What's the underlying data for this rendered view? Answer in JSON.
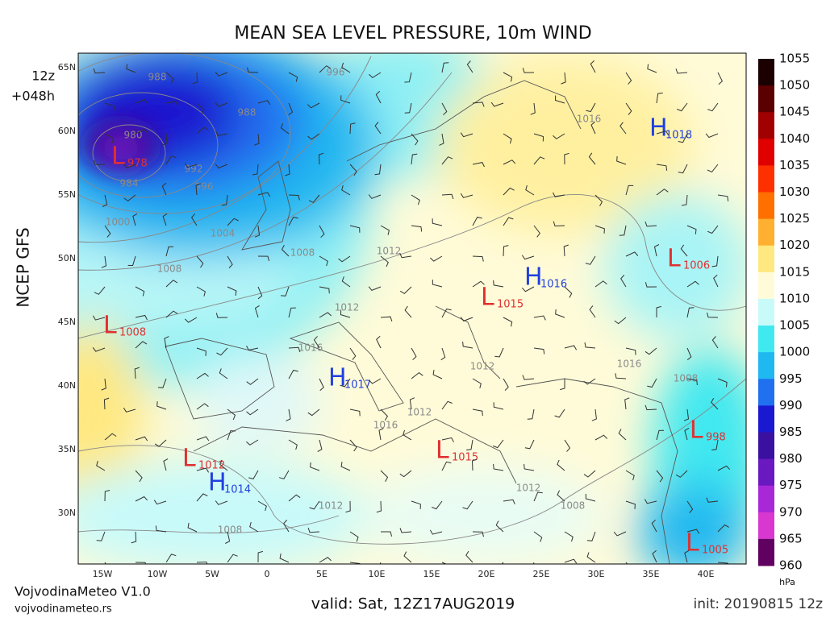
{
  "title": "MEAN SEA LEVEL PRESSURE, 10m WIND",
  "run": {
    "hour": "12z",
    "lead": "+048h"
  },
  "model": "NCEP GFS",
  "lat_labels": [
    "65N",
    "60N",
    "55N",
    "50N",
    "45N",
    "40N",
    "35N",
    "30N"
  ],
  "lon_labels": [
    "15W",
    "10W",
    "5W",
    "0",
    "5E",
    "10E",
    "15E",
    "20E",
    "25E",
    "30E",
    "35E",
    "40E"
  ],
  "colorbar": {
    "labels": [
      1055,
      1050,
      1045,
      1040,
      1035,
      1030,
      1025,
      1020,
      1015,
      1010,
      1005,
      1000,
      995,
      990,
      985,
      980,
      975,
      970,
      965,
      960
    ],
    "colors": [
      "#1a0000",
      "#5a0000",
      "#a00000",
      "#e00000",
      "#ff3000",
      "#ff7000",
      "#ffb030",
      "#ffe880",
      "#fffbd8",
      "#c8fafa",
      "#40e8f0",
      "#20b8f0",
      "#2070f0",
      "#1a18d0",
      "#3a10a0",
      "#6a18c0",
      "#a828d8",
      "#d838d0",
      "#600060"
    ],
    "unit": "hPa"
  },
  "centers": [
    {
      "type": "L",
      "value": "978"
    },
    {
      "type": "H",
      "value": "1018"
    },
    {
      "type": "L",
      "value": "1006"
    },
    {
      "type": "H",
      "value": "1016"
    },
    {
      "type": "L",
      "value": "1015"
    },
    {
      "type": "L",
      "value": "1008"
    },
    {
      "type": "H",
      "value": "1017"
    },
    {
      "type": "L",
      "value": "1015"
    },
    {
      "type": "L",
      "value": "998"
    },
    {
      "type": "L",
      "value": "1012"
    },
    {
      "type": "H",
      "value": "1014"
    },
    {
      "type": "L",
      "value": "1005"
    }
  ],
  "isobar_labels": [
    "988",
    "996",
    "988",
    "980",
    "984",
    "992",
    "996",
    "1000",
    "1004",
    "1008",
    "1008",
    "1012",
    "1012",
    "1016",
    "1016",
    "1012",
    "1016",
    "1012",
    "1012",
    "1008",
    "1012",
    "1008",
    "1008",
    "1016"
  ],
  "footer": {
    "brand": "VojvodinaMeteo V1.0",
    "site": "vojvodinameteo.rs",
    "valid": "valid: Sat, 12Z17AUG2019",
    "init": "init: 20190815 12z"
  }
}
